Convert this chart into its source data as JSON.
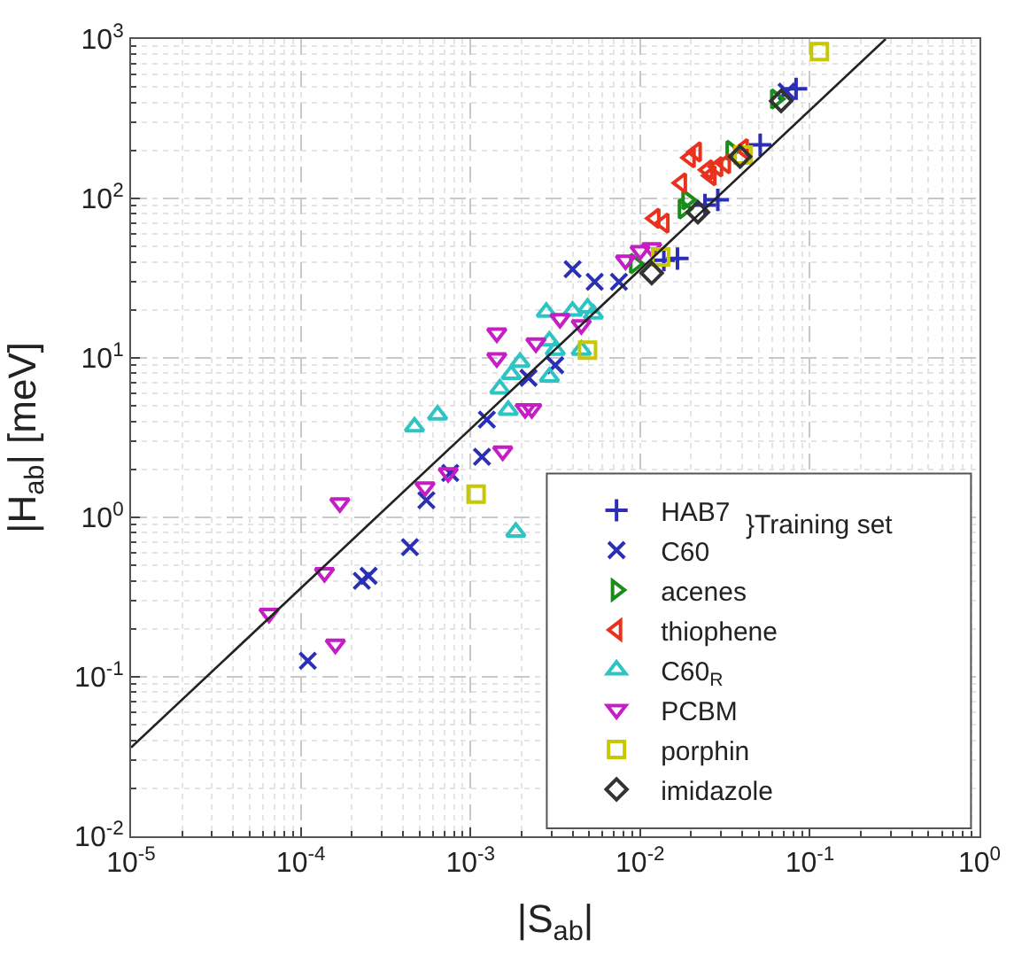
{
  "chart_data": {
    "type": "scatter",
    "xlabel": "|S$_{ab}$|",
    "ylabel": "|H$_{ab}$| [meV]",
    "log": "xy",
    "grid": true,
    "legend": "bottom right",
    "xlim": [
      1e-05,
      1
    ],
    "ylim": [
      0.01,
      1000
    ],
    "xticks": [
      {
        "value": 1e-05,
        "label": "10$^{-5}$"
      },
      {
        "value": 0.0001,
        "label": "10$^{-4}$"
      },
      {
        "value": 0.001,
        "label": "10$^{-3}$"
      },
      {
        "value": 0.01,
        "label": "10$^{-2}$"
      },
      {
        "value": 0.1,
        "label": "10$^{-1}$"
      },
      {
        "value": 1,
        "label": "10$^{0}$"
      }
    ],
    "yticks": [
      {
        "value": 0.01,
        "label": "10$^{-2}$"
      },
      {
        "value": 0.1,
        "label": "10$^{-1}$"
      },
      {
        "value": 1,
        "label": "10$^{0}$"
      },
      {
        "value": 10,
        "label": "10$^{1}$"
      },
      {
        "value": 100,
        "label": "10$^{2}$"
      },
      {
        "value": 1000,
        "label": "10$^{3}$"
      }
    ],
    "annotations": [
      "}Training set"
    ],
    "series": [
      {
        "name": "HAB7",
        "color": "#2b2fb5",
        "marker": "cross",
        "x": [
          0.083,
          0.051,
          0.0287,
          0.0241,
          0.0166,
          0.0138
        ],
        "values": [
          487,
          217,
          98,
          91,
          42,
          41
        ]
      },
      {
        "name": "C60",
        "color": "#2b2fb5",
        "marker": "x",
        "x": [
          0.00011,
          0.000229,
          0.000251,
          0.00044,
          0.00055,
          0.00076,
          0.00117,
          0.00125,
          0.0022,
          0.00316,
          0.004,
          0.0054,
          0.0075,
          0.073
        ],
        "values": [
          0.126,
          0.4,
          0.43,
          0.65,
          1.28,
          1.9,
          2.4,
          4.1,
          7.5,
          9.0,
          36,
          30,
          30,
          467
        ]
      },
      {
        "name": "acenes",
        "color": "#1a8c1a",
        "marker": "triangle-right",
        "x": [
          0.063,
          0.0344,
          0.018,
          0.0189,
          0.0093
        ],
        "values": [
          420,
          200,
          86,
          98,
          39
        ]
      },
      {
        "name": "thiophene",
        "color": "#e8321e",
        "marker": "triangle-left",
        "x": [
          0.0197,
          0.0175,
          0.0122,
          0.0138,
          0.025,
          0.0286,
          0.0318,
          0.0261,
          0.0405,
          0.0214
        ],
        "values": [
          180,
          125,
          75,
          70,
          151,
          158,
          165,
          139,
          205,
          196
        ]
      },
      {
        "name": "C60$_{R}$",
        "color": "#2ec4c4",
        "marker": "triangle-up",
        "x": [
          0.000468,
          0.00064,
          0.00185,
          0.00167,
          0.00149,
          0.00174,
          0.00196,
          0.0028,
          0.00292,
          0.00316,
          0.00292,
          0.0045,
          0.0049,
          0.0053,
          0.004
        ],
        "values": [
          3.7,
          4.4,
          0.81,
          4.7,
          6.4,
          7.9,
          9.4,
          19.4,
          12.8,
          11.2,
          7.6,
          11.2,
          20.6,
          18.9,
          19.7
        ]
      },
      {
        "name": "PCBM",
        "color": "#c41ec4",
        "marker": "triangle-down",
        "x": [
          6.5e-05,
          0.000138,
          0.00017,
          0.00016,
          0.00054,
          0.00074,
          0.00155,
          0.0021,
          0.0023,
          0.00143,
          0.00143,
          0.00243,
          0.00337,
          0.0045,
          0.0082,
          0.01,
          0.0117
        ],
        "values": [
          0.25,
          0.45,
          1.23,
          0.16,
          1.55,
          1.9,
          2.6,
          4.8,
          4.8,
          14.3,
          10.0,
          12.4,
          17.6,
          16.1,
          41,
          47,
          49
        ]
      },
      {
        "name": "porphin",
        "color": "#c8c800",
        "marker": "square",
        "x": [
          0.00108,
          0.0049,
          0.0132,
          0.114,
          0.0405
        ],
        "values": [
          1.4,
          11.2,
          43,
          834,
          187
        ]
      },
      {
        "name": "imidazole",
        "color": "#333333",
        "marker": "diamond",
        "x": [
          0.0117,
          0.0219,
          0.0388,
          0.0678
        ],
        "values": [
          34,
          82,
          183,
          409
        ]
      },
      {
        "type": "line",
        "color": "#222222",
        "x": [
          1e-05,
          0.28
        ],
        "values": [
          0.036,
          1000
        ]
      }
    ]
  }
}
